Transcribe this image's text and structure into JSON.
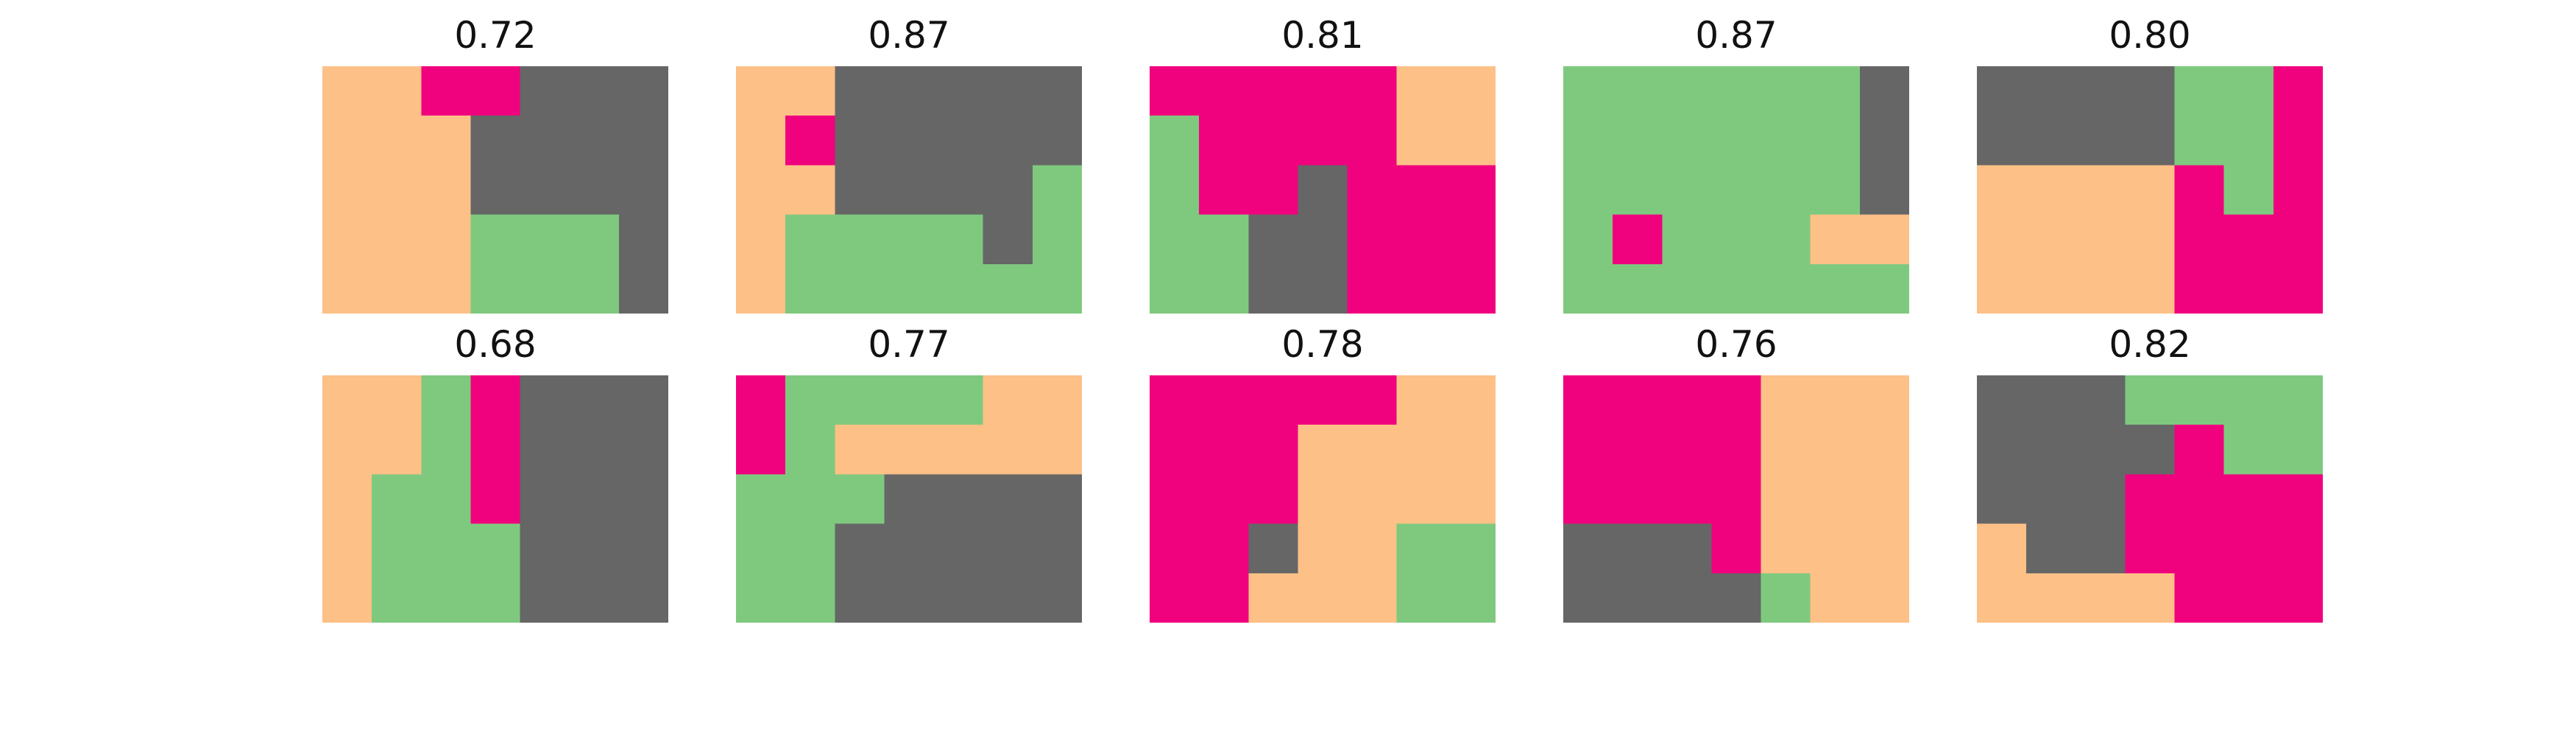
{
  "palette": {
    "0": "#fdc086",
    "1": "#f0027f",
    "2": "#666666",
    "3": "#7fc97f"
  },
  "panels": [
    {
      "title": "0.72",
      "grid": [
        [
          0,
          0,
          1,
          1,
          2,
          2,
          2
        ],
        [
          0,
          0,
          0,
          2,
          2,
          2,
          2
        ],
        [
          0,
          0,
          0,
          2,
          2,
          2,
          2
        ],
        [
          0,
          0,
          0,
          3,
          3,
          3,
          2
        ],
        [
          0,
          0,
          0,
          3,
          3,
          3,
          2
        ]
      ]
    },
    {
      "title": "0.87",
      "grid": [
        [
          0,
          0,
          2,
          2,
          2,
          2,
          2
        ],
        [
          0,
          1,
          2,
          2,
          2,
          2,
          2
        ],
        [
          0,
          0,
          2,
          2,
          2,
          2,
          3
        ],
        [
          0,
          3,
          3,
          3,
          3,
          2,
          3
        ],
        [
          0,
          3,
          3,
          3,
          3,
          3,
          3
        ]
      ]
    },
    {
      "title": "0.81",
      "grid": [
        [
          1,
          1,
          1,
          1,
          1,
          0,
          0
        ],
        [
          3,
          1,
          1,
          1,
          1,
          0,
          0
        ],
        [
          3,
          1,
          1,
          2,
          1,
          1,
          1
        ],
        [
          3,
          3,
          2,
          2,
          1,
          1,
          1
        ],
        [
          3,
          3,
          2,
          2,
          1,
          1,
          1
        ]
      ]
    },
    {
      "title": "0.87",
      "grid": [
        [
          3,
          3,
          3,
          3,
          3,
          3,
          2
        ],
        [
          3,
          3,
          3,
          3,
          3,
          3,
          2
        ],
        [
          3,
          3,
          3,
          3,
          3,
          3,
          2
        ],
        [
          3,
          1,
          3,
          3,
          3,
          0,
          0
        ],
        [
          3,
          3,
          3,
          3,
          3,
          3,
          3
        ]
      ]
    },
    {
      "title": "0.80",
      "grid": [
        [
          2,
          2,
          2,
          2,
          3,
          3,
          1
        ],
        [
          2,
          2,
          2,
          2,
          3,
          3,
          1
        ],
        [
          0,
          0,
          0,
          0,
          1,
          3,
          1
        ],
        [
          0,
          0,
          0,
          0,
          1,
          1,
          1
        ],
        [
          0,
          0,
          0,
          0,
          1,
          1,
          1
        ]
      ]
    },
    {
      "title": "0.68",
      "grid": [
        [
          0,
          0,
          3,
          1,
          2,
          2,
          2
        ],
        [
          0,
          0,
          3,
          1,
          2,
          2,
          2
        ],
        [
          0,
          3,
          3,
          1,
          2,
          2,
          2
        ],
        [
          0,
          3,
          3,
          3,
          2,
          2,
          2
        ],
        [
          0,
          3,
          3,
          3,
          2,
          2,
          2
        ]
      ]
    },
    {
      "title": "0.77",
      "grid": [
        [
          1,
          3,
          3,
          3,
          3,
          0,
          0
        ],
        [
          1,
          3,
          0,
          0,
          0,
          0,
          0
        ],
        [
          3,
          3,
          3,
          2,
          2,
          2,
          2
        ],
        [
          3,
          3,
          2,
          2,
          2,
          2,
          2
        ],
        [
          3,
          3,
          2,
          2,
          2,
          2,
          2
        ]
      ]
    },
    {
      "title": "0.78",
      "grid": [
        [
          1,
          1,
          1,
          1,
          1,
          0,
          0
        ],
        [
          1,
          1,
          1,
          0,
          0,
          0,
          0
        ],
        [
          1,
          1,
          1,
          0,
          0,
          0,
          0
        ],
        [
          1,
          1,
          2,
          0,
          0,
          3,
          3
        ],
        [
          1,
          1,
          0,
          0,
          0,
          3,
          3
        ]
      ]
    },
    {
      "title": "0.76",
      "grid": [
        [
          1,
          1,
          1,
          1,
          0,
          0,
          0
        ],
        [
          1,
          1,
          1,
          1,
          0,
          0,
          0
        ],
        [
          1,
          1,
          1,
          1,
          0,
          0,
          0
        ],
        [
          2,
          2,
          2,
          1,
          0,
          0,
          0
        ],
        [
          2,
          2,
          2,
          2,
          3,
          0,
          0
        ]
      ]
    },
    {
      "title": "0.82",
      "grid": [
        [
          2,
          2,
          2,
          3,
          3,
          3,
          3
        ],
        [
          2,
          2,
          2,
          2,
          1,
          3,
          3
        ],
        [
          2,
          2,
          2,
          1,
          1,
          1,
          1
        ],
        [
          0,
          2,
          2,
          1,
          1,
          1,
          1
        ],
        [
          0,
          0,
          0,
          0,
          1,
          1,
          1
        ]
      ]
    }
  ]
}
